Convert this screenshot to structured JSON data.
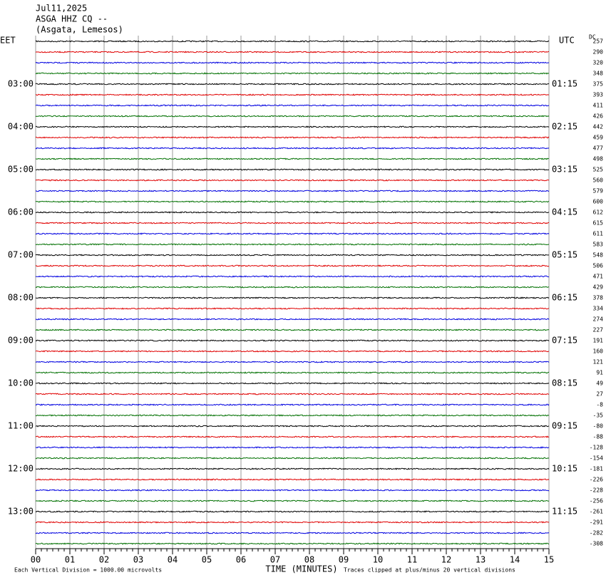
{
  "header": {
    "date": "Jul11,2025",
    "station": "ASGA HHZ CQ --",
    "location": "(Asgata, Lemesos)"
  },
  "chart_data": {
    "type": "helicorder",
    "left_axis_title": "EET",
    "right_axis_title": "UTC",
    "dc_title": "DC",
    "left_labels": [
      "03:00",
      "04:00",
      "05:00",
      "06:00",
      "07:00",
      "08:00",
      "09:00",
      "10:00",
      "11:00",
      "12:00",
      "13:00"
    ],
    "right_labels": [
      "01:15",
      "02:15",
      "03:15",
      "04:15",
      "05:15",
      "06:15",
      "07:15",
      "08:15",
      "09:15",
      "10:15",
      "11:15"
    ],
    "dc_values": [
      257,
      290,
      320,
      348,
      375,
      393,
      411,
      426,
      442,
      459,
      477,
      498,
      525,
      560,
      579,
      600,
      612,
      615,
      611,
      583,
      548,
      506,
      471,
      429,
      378,
      334,
      274,
      227,
      191,
      160,
      121,
      91,
      49,
      27,
      -8,
      -35,
      -80,
      -88,
      -128,
      -154,
      -181,
      -226,
      -228,
      -256,
      -261,
      -291,
      -282,
      -308
    ],
    "colors": [
      "#000000",
      "#e00000",
      "#0000e0",
      "#007000"
    ],
    "xlim": [
      0,
      15
    ],
    "xticks": [
      {
        "value": 0,
        "label": "00"
      },
      {
        "value": 1,
        "label": "01"
      },
      {
        "value": 2,
        "label": "02"
      },
      {
        "value": 3,
        "label": "03"
      },
      {
        "value": 4,
        "label": "04"
      },
      {
        "value": 5,
        "label": "05"
      },
      {
        "value": 6,
        "label": "06"
      },
      {
        "value": 7,
        "label": "07"
      },
      {
        "value": 8,
        "label": "08"
      },
      {
        "value": 9,
        "label": "09"
      },
      {
        "value": 10,
        "label": "10"
      },
      {
        "value": 11,
        "label": "11"
      },
      {
        "value": 12,
        "label": "12"
      },
      {
        "value": 13,
        "label": "13"
      },
      {
        "value": 14,
        "label": "14"
      },
      {
        "value": 15,
        "label": "15"
      }
    ],
    "xlabel": "TIME (MINUTES)",
    "scale_note": "Each Vertical Division = 1000.00 microvolts",
    "clip_note": "Traces clipped at plus/minus 20 vertical divisions"
  }
}
